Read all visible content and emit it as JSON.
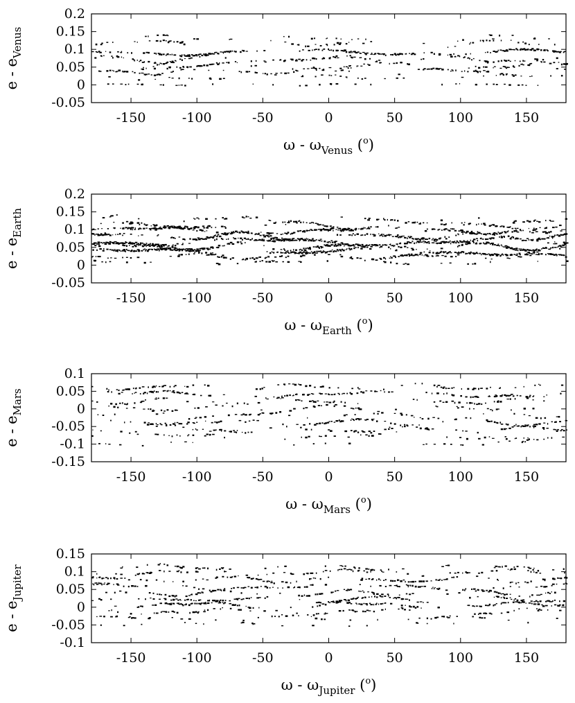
{
  "chart_data": [
    {
      "type": "scatter",
      "planet": "Venus",
      "xlabel": {
        "pre": "ω - ω",
        "sub": "Venus",
        "post": " (",
        "sup": "o",
        "close": ")"
      },
      "ylabel": {
        "pre": "e - e",
        "sub": "Venus"
      },
      "xlim": [
        -180,
        180
      ],
      "ylim": [
        -0.05,
        0.2
      ],
      "xticks": [
        -150,
        -100,
        -50,
        0,
        50,
        100,
        150
      ],
      "yticks": [
        -0.05,
        0,
        0.05,
        0.1,
        0.15,
        0.2
      ],
      "xtick_labels": [
        "-150",
        "-100",
        "-50",
        "0",
        "50",
        "100",
        "150"
      ],
      "ytick_labels": [
        "-0.05",
        "0",
        "0.05",
        "0.1",
        "0.15",
        "0.2"
      ],
      "grid": false,
      "point_color": "#000000",
      "bands": [
        {
          "center": 0.133,
          "amp": 0.006,
          "density": 0.1
        },
        {
          "center": 0.118,
          "amp": 0.007,
          "density": 0.22
        },
        {
          "center": 0.092,
          "amp": 0.006,
          "density": 0.7
        },
        {
          "center": 0.072,
          "amp": 0.008,
          "density": 0.45
        },
        {
          "center": 0.052,
          "amp": 0.008,
          "density": 0.38
        },
        {
          "center": 0.038,
          "amp": 0.006,
          "density": 0.4
        },
        {
          "center": 0.022,
          "amp": 0.005,
          "density": 0.15
        },
        {
          "center": 0.001,
          "amp": 0.002,
          "density": 0.12
        }
      ]
    },
    {
      "type": "scatter",
      "planet": "Earth",
      "xlabel": {
        "pre": "ω - ω",
        "sub": "Earth",
        "post": " (",
        "sup": "o",
        "close": ")"
      },
      "ylabel": {
        "pre": "e - e",
        "sub": "Earth"
      },
      "xlim": [
        -180,
        180
      ],
      "ylim": [
        -0.05,
        0.2
      ],
      "xticks": [
        -150,
        -100,
        -50,
        0,
        50,
        100,
        150
      ],
      "yticks": [
        -0.05,
        0,
        0.05,
        0.1,
        0.15,
        0.2
      ],
      "xtick_labels": [
        "-150",
        "-100",
        "-50",
        "0",
        "50",
        "100",
        "150"
      ],
      "ytick_labels": [
        "-0.05",
        "0",
        "0.05",
        "0.1",
        "0.15",
        "0.2"
      ],
      "grid": false,
      "point_color": "#000000",
      "bands": [
        {
          "center": 0.128,
          "amp": 0.008,
          "density": 0.25
        },
        {
          "center": 0.112,
          "amp": 0.008,
          "density": 0.6
        },
        {
          "center": 0.098,
          "amp": 0.007,
          "density": 0.85
        },
        {
          "center": 0.082,
          "amp": 0.008,
          "density": 0.95
        },
        {
          "center": 0.066,
          "amp": 0.008,
          "density": 1.0
        },
        {
          "center": 0.052,
          "amp": 0.008,
          "density": 1.0
        },
        {
          "center": 0.038,
          "amp": 0.007,
          "density": 0.9
        },
        {
          "center": 0.024,
          "amp": 0.006,
          "density": 0.55
        },
        {
          "center": 0.008,
          "amp": 0.004,
          "density": 0.2
        }
      ]
    },
    {
      "type": "scatter",
      "planet": "Mars",
      "xlabel": {
        "pre": "ω - ω",
        "sub": "Mars",
        "post": " (",
        "sup": "o",
        "close": ")"
      },
      "ylabel": {
        "pre": "e - e",
        "sub": "Mars"
      },
      "xlim": [
        -180,
        180
      ],
      "ylim": [
        -0.15,
        0.1
      ],
      "xticks": [
        -150,
        -100,
        -50,
        0,
        50,
        100,
        150
      ],
      "yticks": [
        -0.15,
        -0.1,
        -0.05,
        0,
        0.05,
        0.1
      ],
      "xtick_labels": [
        "-150",
        "-100",
        "-50",
        "0",
        "50",
        "100",
        "150"
      ],
      "ytick_labels": [
        "-0.15",
        "-0.1",
        "-0.05",
        "0",
        "0.05",
        "0.1"
      ],
      "grid": false,
      "point_color": "#000000",
      "bands": [
        {
          "center": 0.062,
          "amp": 0.006,
          "density": 0.35
        },
        {
          "center": 0.042,
          "amp": 0.006,
          "density": 0.45
        },
        {
          "center": 0.022,
          "amp": 0.006,
          "density": 0.25
        },
        {
          "center": 0.002,
          "amp": 0.006,
          "density": 0.2
        },
        {
          "center": -0.018,
          "amp": 0.006,
          "density": 0.22
        },
        {
          "center": -0.038,
          "amp": 0.007,
          "density": 0.4
        },
        {
          "center": -0.058,
          "amp": 0.007,
          "density": 0.35
        },
        {
          "center": -0.078,
          "amp": 0.007,
          "density": 0.22
        },
        {
          "center": -0.098,
          "amp": 0.004,
          "density": 0.1
        }
      ]
    },
    {
      "type": "scatter",
      "planet": "Jupiter",
      "xlabel": {
        "pre": "ω - ω",
        "sub": "Jupiter",
        "post": " (",
        "sup": "o",
        "close": ")"
      },
      "ylabel": {
        "pre": "e - e",
        "sub": "Jupiter"
      },
      "xlim": [
        -180,
        180
      ],
      "ylim": [
        -0.1,
        0.15
      ],
      "xticks": [
        -150,
        -100,
        -50,
        0,
        50,
        100,
        150
      ],
      "yticks": [
        -0.1,
        -0.05,
        0,
        0.05,
        0.1,
        0.15
      ],
      "xtick_labels": [
        "-150",
        "-100",
        "-50",
        "0",
        "50",
        "100",
        "150"
      ],
      "ytick_labels": [
        "-0.1",
        "-0.05",
        "0",
        "0.05",
        "0.1",
        "0.15"
      ],
      "grid": false,
      "point_color": "#000000",
      "bands": [
        {
          "center": 0.112,
          "amp": 0.006,
          "density": 0.2
        },
        {
          "center": 0.098,
          "amp": 0.006,
          "density": 0.3
        },
        {
          "center": 0.078,
          "amp": 0.006,
          "density": 0.45
        },
        {
          "center": 0.058,
          "amp": 0.006,
          "density": 0.35
        },
        {
          "center": 0.04,
          "amp": 0.006,
          "density": 0.4
        },
        {
          "center": 0.022,
          "amp": 0.006,
          "density": 0.45
        },
        {
          "center": 0.006,
          "amp": 0.006,
          "density": 0.55
        },
        {
          "center": -0.012,
          "amp": 0.006,
          "density": 0.3
        },
        {
          "center": -0.032,
          "amp": 0.006,
          "density": 0.18
        },
        {
          "center": -0.048,
          "amp": 0.004,
          "density": 0.1
        }
      ]
    }
  ]
}
